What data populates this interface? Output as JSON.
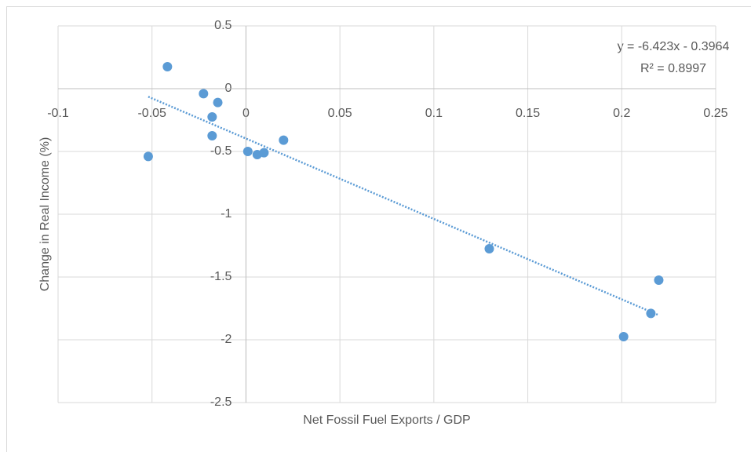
{
  "chart_data": {
    "type": "scatter",
    "x_label": "Net Fossil Fuel Exports / GDP",
    "y_label": "Change in Real Income (%)",
    "x": [
      -0.0418,
      -0.0226,
      -0.015,
      -0.018,
      -0.018,
      -0.052,
      0.001,
      0.006,
      0.0096,
      0.02,
      0.1295,
      0.201,
      0.2155,
      0.2197
    ],
    "values": [
      0.175,
      -0.04,
      -0.11,
      -0.225,
      -0.375,
      -0.54,
      -0.5,
      -0.525,
      -0.51,
      -0.41,
      -1.275,
      -1.975,
      -1.79,
      -1.525
    ],
    "color": "#5b9bd5",
    "trendline": true,
    "trendline_equation": "y = -6.423x - 0.3964",
    "trendline_r2": "R² = 0.8997",
    "xlim": [
      -0.1,
      0.25
    ],
    "xticks": [
      -0.1,
      -0.05,
      0,
      0.05,
      0.1,
      0.15,
      0.2,
      0.25
    ],
    "ylim": [
      -2.5,
      0.5
    ],
    "yticks": [
      0.5,
      0,
      -0.5,
      -1,
      -1.5,
      -2,
      -2.5
    ],
    "grid": true
  }
}
